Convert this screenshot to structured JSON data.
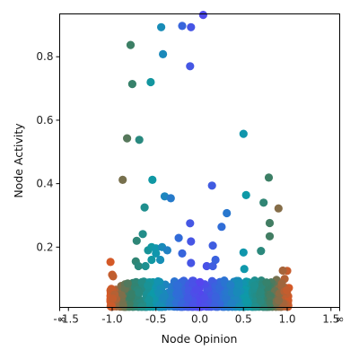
{
  "chart_data": {
    "type": "scatter",
    "title": "",
    "xlabel": "Node Opinion",
    "ylabel": "Node Activity",
    "xticks": [
      {
        "value": -1.6,
        "label": "-∞"
      },
      {
        "value": -1.5,
        "label": "-1.5"
      },
      {
        "value": -1.0,
        "label": "-1.0"
      },
      {
        "value": -0.5,
        "label": "-0.5"
      },
      {
        "value": 0.0,
        "label": "0.0"
      },
      {
        "value": 0.5,
        "label": "0.5"
      },
      {
        "value": 1.0,
        "label": "1.0"
      },
      {
        "value": 1.5,
        "label": "1.5"
      },
      {
        "value": 1.6,
        "label": "∞"
      }
    ],
    "yticks": [
      0.2,
      0.4,
      0.6,
      0.8
    ],
    "xlim": [
      -1.6,
      1.6
    ],
    "ylim": [
      0.01,
      0.935
    ],
    "grid": false,
    "legend": "none",
    "color_scale": [
      "#e8541f",
      "#3a7f66",
      "#0d9aa8",
      "#2e6fd6",
      "#5545ee",
      "#2e6fd6",
      "#0d9aa8",
      "#3a7f66",
      "#e8541f"
    ],
    "points": [
      [
        -0.44,
        0.893
      ],
      [
        -0.2,
        0.897
      ],
      [
        -0.1,
        0.893
      ],
      [
        0.04,
        0.932
      ],
      [
        -0.79,
        0.837
      ],
      [
        -0.42,
        0.808
      ],
      [
        -0.11,
        0.77
      ],
      [
        -0.77,
        0.714
      ],
      [
        -0.56,
        0.72
      ],
      [
        -0.83,
        0.543
      ],
      [
        -0.69,
        0.538
      ],
      [
        0.5,
        0.557
      ],
      [
        -0.88,
        0.412
      ],
      [
        -0.54,
        0.412
      ],
      [
        0.14,
        0.394
      ],
      [
        0.79,
        0.419
      ],
      [
        -0.4,
        0.36
      ],
      [
        -0.33,
        0.354
      ],
      [
        -0.63,
        0.325
      ],
      [
        0.31,
        0.307
      ],
      [
        0.73,
        0.34
      ],
      [
        0.53,
        0.364
      ],
      [
        0.9,
        0.322
      ],
      [
        -0.11,
        0.275
      ],
      [
        0.25,
        0.264
      ],
      [
        0.8,
        0.276
      ],
      [
        -0.65,
        0.241
      ],
      [
        -0.72,
        0.22
      ],
      [
        -0.59,
        0.19
      ],
      [
        -0.55,
        0.2
      ],
      [
        -0.5,
        0.196
      ],
      [
        -0.43,
        0.2
      ],
      [
        -0.37,
        0.19
      ],
      [
        -0.24,
        0.229
      ],
      [
        -0.1,
        0.218
      ],
      [
        0.15,
        0.205
      ],
      [
        0.5,
        0.183
      ],
      [
        0.7,
        0.188
      ],
      [
        0.8,
        0.234
      ],
      [
        -1.02,
        0.153
      ],
      [
        -0.73,
        0.155
      ],
      [
        -0.7,
        0.14
      ],
      [
        -0.62,
        0.14
      ],
      [
        -0.55,
        0.16
      ],
      [
        -0.5,
        0.18
      ],
      [
        -0.45,
        0.16
      ],
      [
        -0.2,
        0.18
      ],
      [
        -0.1,
        0.15
      ],
      [
        0.08,
        0.14
      ],
      [
        0.15,
        0.14
      ],
      [
        0.18,
        0.16
      ],
      [
        0.51,
        0.131
      ],
      [
        1.0,
        0.125
      ],
      [
        0.95,
        0.126
      ],
      [
        -1.0,
        0.113
      ],
      [
        -0.99,
        0.108
      ],
      [
        0.97,
        0.1
      ],
      [
        0.94,
        0.085
      ]
    ],
    "band_points": 950
  }
}
